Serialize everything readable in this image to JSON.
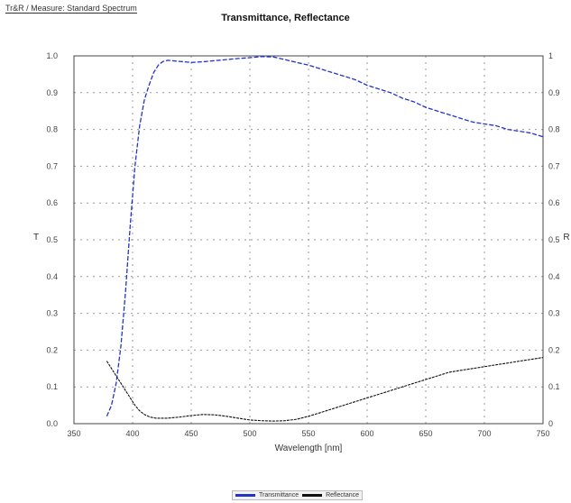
{
  "header": {
    "text": "Tr&R / Measure: Standard Spectrum"
  },
  "chart_data": {
    "type": "line",
    "title": "Transmittance, Reflectance",
    "xlabel": "Wavelength [nm]",
    "ylabel_left": "T",
    "ylabel_right": "R",
    "xlim": [
      350,
      750
    ],
    "ylim_left": [
      0,
      1.0
    ],
    "ylim_right": [
      0,
      1.0
    ],
    "x_ticks": [
      "350",
      "400",
      "450",
      "500",
      "550",
      "600",
      "650",
      "700",
      "750"
    ],
    "y_ticks_left": [
      "0.0",
      "0.1",
      "0.2",
      "0.3",
      "0.4",
      "0.5",
      "0.6",
      "0.7",
      "0.8",
      "0.9",
      "1.0"
    ],
    "y_ticks_right": [
      "0",
      "0.1",
      "0.2",
      "0.3",
      "0.4",
      "0.5",
      "0.6",
      "0.7",
      "0.8",
      "0.9",
      "1"
    ],
    "grid": true,
    "legend_position": "bottom",
    "series": [
      {
        "name": "Transmittance",
        "color": "#2233cc",
        "dashed": true,
        "x": [
          378,
          382,
          386,
          390,
          394,
          398,
          402,
          406,
          410,
          414,
          418,
          422,
          426,
          430,
          440,
          450,
          460,
          470,
          480,
          490,
          500,
          510,
          520,
          530,
          540,
          550,
          560,
          570,
          580,
          590,
          600,
          610,
          620,
          630,
          640,
          650,
          660,
          670,
          680,
          690,
          700,
          710,
          720,
          730,
          740,
          750
        ],
        "values": [
          0.02,
          0.05,
          0.11,
          0.21,
          0.36,
          0.54,
          0.7,
          0.81,
          0.88,
          0.92,
          0.955,
          0.975,
          0.985,
          0.988,
          0.985,
          0.982,
          0.984,
          0.987,
          0.99,
          0.993,
          0.995,
          0.998,
          0.997,
          0.99,
          0.982,
          0.975,
          0.965,
          0.955,
          0.945,
          0.935,
          0.92,
          0.91,
          0.9,
          0.885,
          0.875,
          0.86,
          0.85,
          0.84,
          0.83,
          0.82,
          0.815,
          0.81,
          0.8,
          0.795,
          0.79,
          0.78
        ]
      },
      {
        "name": "Reflectance",
        "color": "#111111",
        "dashed": false,
        "x": [
          378,
          382,
          386,
          390,
          394,
          398,
          402,
          406,
          410,
          415,
          420,
          430,
          440,
          450,
          460,
          470,
          480,
          490,
          500,
          510,
          520,
          530,
          540,
          550,
          560,
          570,
          580,
          590,
          600,
          610,
          620,
          630,
          640,
          650,
          660,
          670,
          680,
          690,
          700,
          710,
          720,
          730,
          740,
          750
        ],
        "values": [
          0.17,
          0.15,
          0.13,
          0.11,
          0.09,
          0.07,
          0.05,
          0.035,
          0.025,
          0.018,
          0.015,
          0.015,
          0.018,
          0.022,
          0.025,
          0.024,
          0.02,
          0.015,
          0.01,
          0.008,
          0.007,
          0.008,
          0.012,
          0.02,
          0.03,
          0.04,
          0.05,
          0.06,
          0.07,
          0.08,
          0.09,
          0.1,
          0.11,
          0.12,
          0.13,
          0.14,
          0.145,
          0.15,
          0.155,
          0.16,
          0.165,
          0.17,
          0.175,
          0.18
        ]
      }
    ]
  }
}
